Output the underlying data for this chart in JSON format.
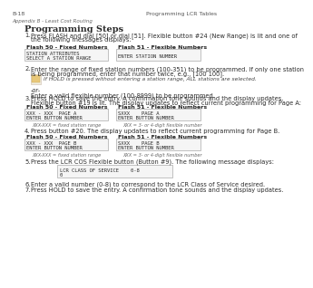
{
  "bg_color": "#ffffff",
  "header_line_color": "#d4a882",
  "header_left": "B-18",
  "header_right": "Programming LCR Tables",
  "subheader": "Appendix B - Least Cost Routing",
  "title": "Programming Steps",
  "steps": [
    [
      "Press ",
      "FLASH",
      " and dial [",
      "50",
      "] or dial [",
      "51",
      "]. Flexible button #24 (New Range) is lit and one of"
    ],
    [
      "the following messages displays:"
    ],
    [
      "Enter the range of ",
      "fixed",
      " station numbers (100-351) to be programmed. If only one station"
    ],
    [
      "is being programmed, enter that number twice, e.g., [100 100]."
    ],
    [
      "If HOLD is pressed without entering a station range, ALL stations are selected."
    ],
    [
      "-or-"
    ],
    [
      "Enter a valid ",
      "flexible",
      " number (100-8999) to be programmed."
    ],
    [
      "Press HOLD to save the entry. A confirmation tone sounds and the display updates."
    ],
    [
      "Flexible button #19 is lit. The display updates to reflect current programming for Page A:"
    ],
    [
      "Press button #20. The display updates to reflect current programming for Page B."
    ],
    [
      "Press the LCR COS Flexible button (",
      "Button #9",
      "). The following message displays:"
    ],
    [
      "Enter a valid number (0-8) to correspond to the LCR Class of Service desired."
    ],
    [
      "Press HOLD to save the entry. A confirmation tone sounds and the display updates."
    ]
  ],
  "box1a_label": "Flash 50 - Fixed Numbers",
  "box1b_label": "Flash 51 - Flexible Numbers",
  "box1a_lines": [
    "STATION ATTRIBUTES",
    "SELECT A STATION RANGE"
  ],
  "box1b_lines": [
    "ENTER STATION NUMBER"
  ],
  "box3a_label": "Flash 50 - Fixed Numbers",
  "box3b_label": "Flash 51 - Flexible Numbers",
  "box3a_lines": [
    "XXX - XXX  PAGE A",
    "ENTER BUTTON NUMBER"
  ],
  "box3b_lines": [
    "SXXX    PAGE A",
    "ENTER BUTTON NUMBER"
  ],
  "box3a_caption": "XXX-XXX = fixed station range",
  "box3b_caption": "XXX = 3- or 4-digit flexible number",
  "box4a_label": "Flash 50 - Fixed Numbers",
  "box4b_label": "Flash 51 - Flexible Numbers",
  "box4a_lines": [
    "XXX - XXX  PAGE B",
    "ENTER BUTTON NUMBER"
  ],
  "box4b_lines": [
    "SXXX    PAGE B",
    "ENTER BUTTON NUMBER"
  ],
  "box4a_caption": "XXX-XXX = fixed station range",
  "box4b_caption": "XXX = 3- or 4-digit flexible number",
  "box5_lines": [
    "LCR CLASS OF SERVICE    0-8",
    "0"
  ],
  "box_border_color": "#aaaaaa",
  "box_bg_color": "#f5f5f5",
  "text_color": "#2a2a2a",
  "caption_color": "#666666",
  "label_color": "#222222"
}
